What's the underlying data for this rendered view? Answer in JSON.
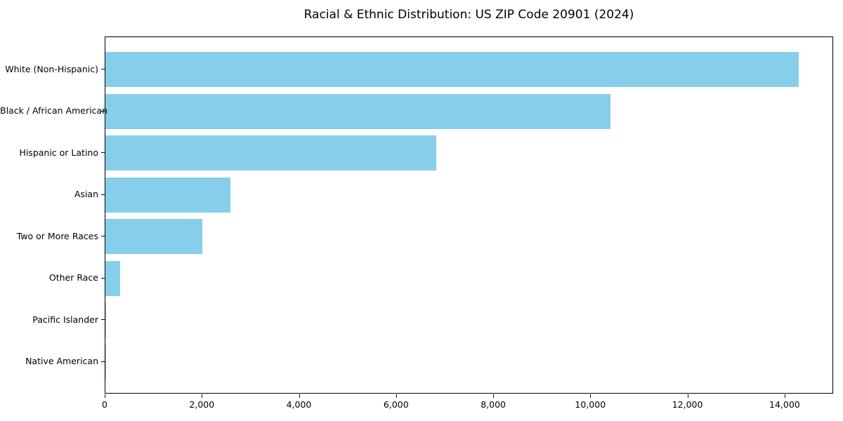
{
  "title": "Racial & Ethnic Distribution: US ZIP Code 20901 (2024)",
  "chart_data": {
    "type": "bar",
    "orientation": "horizontal",
    "title": "Racial & Ethnic Distribution: US ZIP Code 20901 (2024)",
    "xlabel": "",
    "ylabel": "",
    "categories": [
      "White (Non-Hispanic)",
      "Black / African American",
      "Hispanic or Latino",
      "Asian",
      "Two or More Races",
      "Other Race",
      "Pacific Islander",
      "Native American"
    ],
    "values": [
      14275,
      10400,
      6810,
      2575,
      2000,
      305,
      20,
      10
    ],
    "xlim": [
      0,
      15000
    ],
    "x_ticks": [
      0,
      2000,
      4000,
      6000,
      8000,
      10000,
      12000,
      14000
    ],
    "x_tick_labels": [
      "0",
      "2,000",
      "4,000",
      "6,000",
      "8,000",
      "10,000",
      "12,000",
      "14,000"
    ],
    "bar_color": "#87CEEB",
    "axis_color": "#000000",
    "grid": false,
    "legend": false
  }
}
